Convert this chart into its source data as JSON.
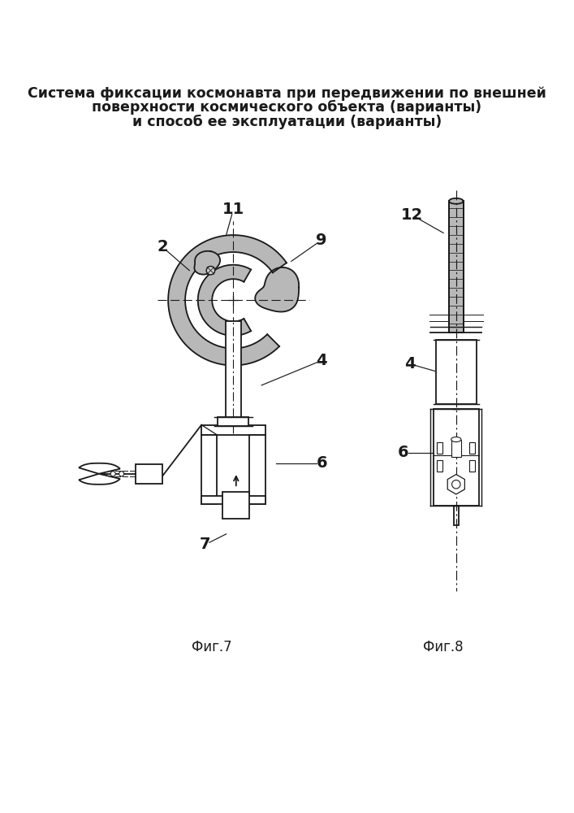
{
  "title_line1": "Система фиксации космонавта при передвижении по внешней",
  "title_line2": "поверхности космического объекта (варианты)",
  "title_line3": "и способ ее эксплуатации (варианты)",
  "fig_label1": "Фиг.7",
  "fig_label2": "Фиг.8",
  "background_color": "#ffffff",
  "line_color": "#1a1a1a",
  "gray_fill": "#b8b8b8",
  "gray_medium": "#c8c8c8",
  "title_fontsize": 12.5,
  "label_fontsize": 14
}
